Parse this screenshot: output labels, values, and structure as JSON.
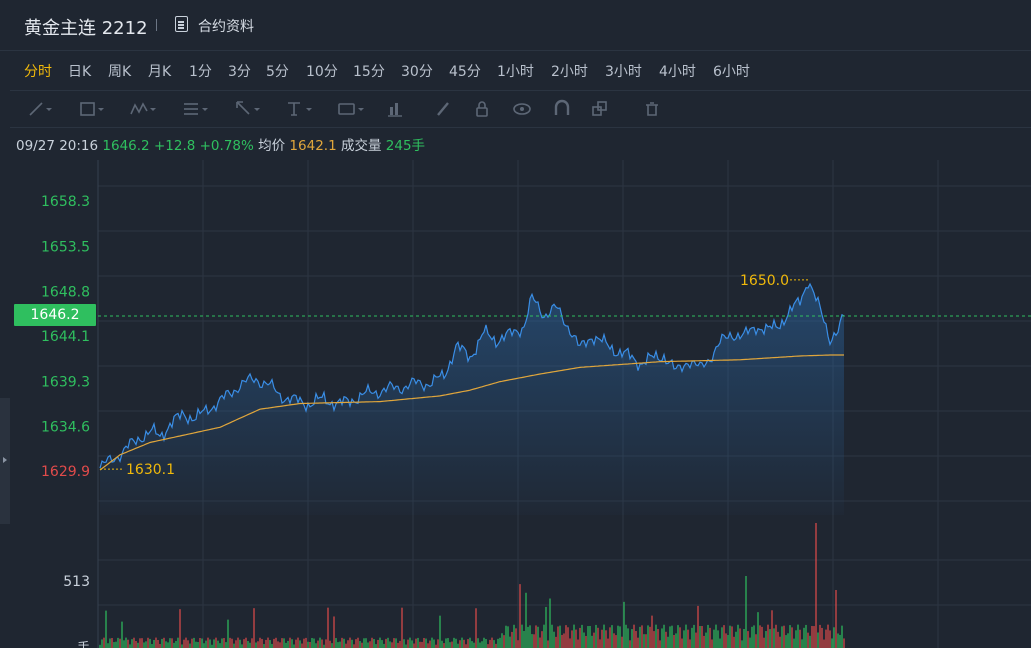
{
  "header": {
    "title": "黄金主连 2212",
    "contract_label": "合约资料"
  },
  "periods": [
    {
      "label": "分时",
      "active": true
    },
    {
      "label": "日K"
    },
    {
      "label": "周K"
    },
    {
      "label": "月K"
    },
    {
      "label": "1分"
    },
    {
      "label": "3分"
    },
    {
      "label": "5分"
    },
    {
      "label": "10分"
    },
    {
      "label": "15分"
    },
    {
      "label": "30分"
    },
    {
      "label": "45分"
    },
    {
      "label": "1小时"
    },
    {
      "label": "2小时"
    },
    {
      "label": "3小时"
    },
    {
      "label": "4小时"
    },
    {
      "label": "6小时"
    }
  ],
  "toolbar": [
    "line-tool-icon",
    "rect-tool-icon",
    "wave-tool-icon",
    "fib-tool-icon",
    "arrow-tool-icon",
    "text-tool-icon",
    "label-tool-icon",
    "measure-tool-icon",
    "pen-tool-icon",
    "lock-icon",
    "eye-icon",
    "magnet-icon",
    "copy-icon",
    "trash-icon"
  ],
  "info": {
    "time": "09/27 20:16",
    "price": "1646.2",
    "change": "+12.8",
    "change_pct": "+0.78%",
    "avg_label": "均价",
    "avg_price": "1642.1",
    "volume_label": "成交量",
    "volume": "245手"
  },
  "current_price_tag": "1646.2",
  "colors": {
    "up": "#2fbf5f",
    "down": "#e14b4b",
    "accent": "#f0b90b",
    "price_line": "#3a8ee6",
    "avg_line": "#e0a63c"
  },
  "chart_data": {
    "type": "line",
    "price_axis_labels": [
      "1658.3",
      "1653.5",
      "1648.8",
      "1644.1",
      "1639.3",
      "1634.6",
      "1629.9"
    ],
    "price_range": [
      1629.9,
      1658.3
    ],
    "volume_axis_labels": [
      "513",
      "手"
    ],
    "high_annotation": "1650.0",
    "low_annotation": "1630.1",
    "last_price": 1646.2,
    "series": [
      {
        "name": "price",
        "keypoints": [
          [
            0,
            1630.2
          ],
          [
            5,
            1631.0
          ],
          [
            12,
            1632.0
          ],
          [
            20,
            1633.5
          ],
          [
            26,
            1634.0
          ],
          [
            30,
            1633.6
          ],
          [
            35,
            1634.8
          ],
          [
            42,
            1635.9
          ],
          [
            48,
            1635.4
          ],
          [
            55,
            1636.6
          ],
          [
            62,
            1637.5
          ],
          [
            70,
            1639.0
          ],
          [
            78,
            1639.6
          ],
          [
            84,
            1639.0
          ],
          [
            90,
            1637.9
          ],
          [
            97,
            1637.3
          ],
          [
            105,
            1637.0
          ],
          [
            112,
            1637.5
          ],
          [
            120,
            1636.9
          ],
          [
            128,
            1637.6
          ],
          [
            136,
            1638.2
          ],
          [
            144,
            1638.5
          ],
          [
            152,
            1638.8
          ],
          [
            158,
            1639.1
          ],
          [
            166,
            1639.2
          ],
          [
            172,
            1639.9
          ],
          [
            178,
            1643.0
          ],
          [
            185,
            1641.9
          ],
          [
            192,
            1644.4
          ],
          [
            198,
            1643.7
          ],
          [
            205,
            1644.2
          ],
          [
            212,
            1645.2
          ],
          [
            216,
            1648.0
          ],
          [
            222,
            1646.4
          ],
          [
            228,
            1647.0
          ],
          [
            235,
            1644.9
          ],
          [
            240,
            1642.7
          ],
          [
            246,
            1644.2
          ],
          [
            252,
            1643.3
          ],
          [
            258,
            1642.6
          ],
          [
            264,
            1642.0
          ],
          [
            270,
            1641.3
          ],
          [
            276,
            1641.7
          ],
          [
            282,
            1642.1
          ],
          [
            288,
            1640.3
          ],
          [
            294,
            1641.6
          ],
          [
            300,
            1640.6
          ],
          [
            305,
            1641.9
          ],
          [
            310,
            1643.3
          ],
          [
            316,
            1644.4
          ],
          [
            322,
            1644.0
          ],
          [
            328,
            1645.2
          ],
          [
            334,
            1644.6
          ],
          [
            340,
            1645.5
          ],
          [
            345,
            1646.5
          ],
          [
            350,
            1647.9
          ],
          [
            354,
            1650.0
          ],
          [
            358,
            1647.8
          ],
          [
            362,
            1645.9
          ],
          [
            365,
            1643.9
          ],
          [
            369,
            1644.4
          ],
          [
            372,
            1646.2
          ]
        ]
      },
      {
        "name": "average",
        "keypoints": [
          [
            0,
            1630.0
          ],
          [
            10,
            1631.6
          ],
          [
            25,
            1632.9
          ],
          [
            60,
            1634.5
          ],
          [
            80,
            1636.4
          ],
          [
            100,
            1637.0
          ],
          [
            140,
            1637.2
          ],
          [
            170,
            1637.8
          ],
          [
            185,
            1638.4
          ],
          [
            200,
            1639.3
          ],
          [
            220,
            1640.1
          ],
          [
            240,
            1640.8
          ],
          [
            280,
            1641.4
          ],
          [
            320,
            1641.6
          ],
          [
            350,
            1642.0
          ],
          [
            365,
            1642.1
          ]
        ]
      }
    ],
    "x_count": 373
  }
}
